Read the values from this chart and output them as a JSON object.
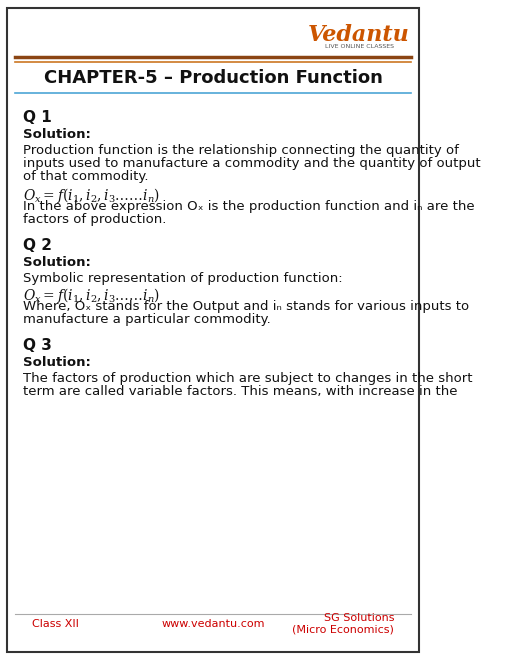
{
  "title": "CHAPTER-5 – Production Function",
  "bg_color": "#ffffff",
  "page_border_color": "#333333",
  "header_line_colors": [
    "#8B4513",
    "#cc6600"
  ],
  "watermark_color": "#f5c5a3",
  "footer_bg": "#ffffff",
  "footer_text_color": "#cc0000",
  "footer_left": "Class XII",
  "footer_center": "www.vedantu.com",
  "footer_right": "SG Solutions\n(Micro Economics)",
  "q1_label": "Q 1",
  "q1_solution": "Solution:",
  "q1_body": "Production function is the relationship connecting the quantity of\ninputs used to manufacture a commodity and the quantity of output\nof that commodity.",
  "q1_formula": "$O_x = f(i_1, i_2, i_3 \\ldots \\ldots i_n)$",
  "q1_formula_note": "In the above expression Oₓ is the production function and iₙ are the\nfactors of production.",
  "q2_label": "Q 2",
  "q2_solution": "Solution:",
  "q2_body": "Symbolic representation of production function:",
  "q2_formula": "$O_x = f(i_1, i_2, i_3 \\ldots \\ldots i_n)$",
  "q2_formula_note": "Where, Oₓ stands for the Output and iₙ stands for various inputs to\nmanufacture a particular commodity.",
  "q3_label": "Q 3",
  "q3_solution": "Solution:",
  "q3_body": "The factors of production which are subject to changes in the short\nterm are called variable factors. This means, with increase in the",
  "vedantu_color": "#cc5500",
  "title_fontsize": 13,
  "body_fontsize": 9.5,
  "label_fontsize": 11,
  "solution_fontsize": 9.5,
  "formula_fontsize": 10
}
